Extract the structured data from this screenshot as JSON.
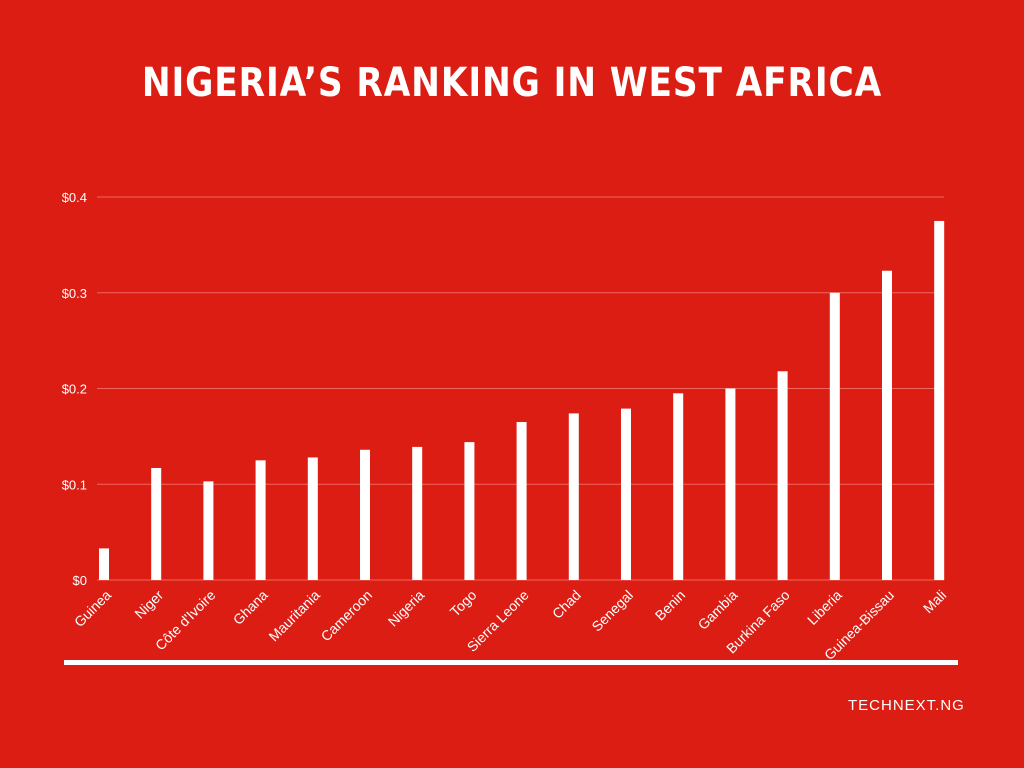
{
  "header": {
    "title": "Nigeria’s Ranking in West Africa"
  },
  "footer": {
    "source": "TECHNEXT.NG"
  },
  "colors": {
    "background": "#db1d14",
    "bars": "#ffffff",
    "grid": "#f0675f",
    "text": "#ffffff"
  },
  "chart_data": {
    "type": "bar",
    "title": "Nigeria’s Ranking in West Africa",
    "xlabel": "",
    "ylabel": "",
    "categories": [
      "Guinea",
      "Niger",
      "Côte d'Ivoire",
      "Ghana",
      "Mauritania",
      "Cameroon",
      "Nigeria",
      "Togo",
      "Sierra Leone",
      "Chad",
      "Senegal",
      "Benin",
      "Gambia",
      "Burkina Faso",
      "Liberia",
      "Guinea-Bissau",
      "Mali"
    ],
    "values": [
      0.033,
      0.117,
      0.103,
      0.125,
      0.128,
      0.136,
      0.139,
      0.144,
      0.165,
      0.174,
      0.179,
      0.195,
      0.2,
      0.218,
      0.3,
      0.323,
      0.375
    ],
    "ylim": [
      0,
      0.4
    ],
    "yticks": [
      0,
      0.1,
      0.2,
      0.3,
      0.4
    ],
    "ytick_labels": [
      "$0",
      "$0.1",
      "$0.2",
      "$0.3",
      "$0.4"
    ],
    "grid": true,
    "legend": "none"
  }
}
